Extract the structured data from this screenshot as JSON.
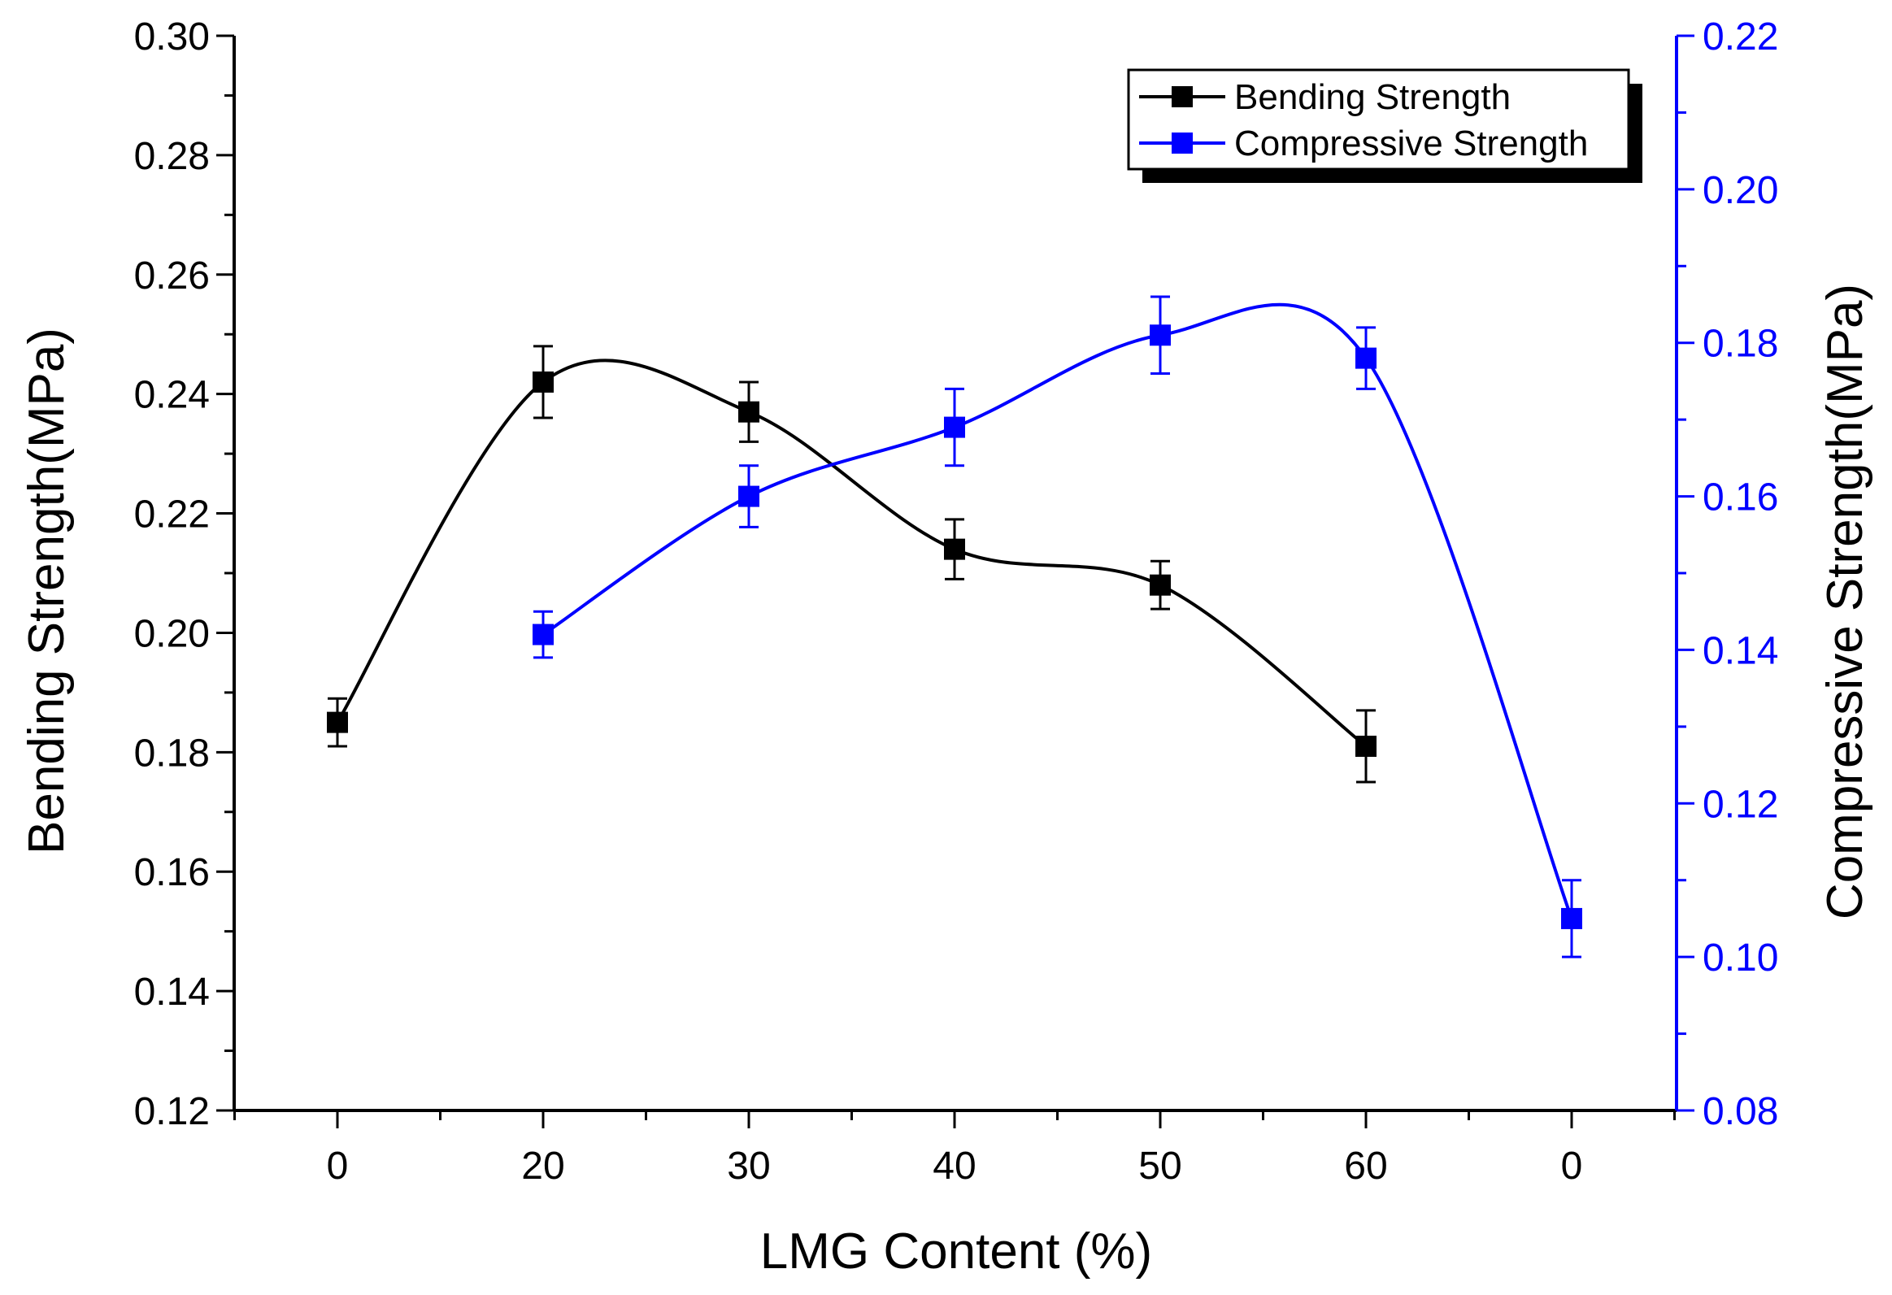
{
  "chart_data": {
    "type": "line",
    "xlabel": "LMG Content (%)",
    "x_tick_labels": [
      "0",
      "20",
      "30",
      "40",
      "50",
      "60",
      "0"
    ],
    "y_left": {
      "label": "Bending Strength(MPa)",
      "range": [
        0.12,
        0.3
      ],
      "ticks": [
        "0.12",
        "0.14",
        "0.16",
        "0.18",
        "0.20",
        "0.22",
        "0.24",
        "0.26",
        "0.28",
        "0.30"
      ],
      "color": "#000000"
    },
    "y_right": {
      "label": "Compressive Strength(MPa)",
      "range": [
        0.08,
        0.22
      ],
      "ticks": [
        "0.08",
        "0.10",
        "0.12",
        "0.14",
        "0.16",
        "0.18",
        "0.20",
        "0.22"
      ],
      "color": "#0000ff"
    },
    "series": [
      {
        "name": "Bending Strength",
        "axis": "left",
        "color": "#000000",
        "marker": "square",
        "points": [
          {
            "category_index": 0,
            "value": 0.185,
            "error": 0.004
          },
          {
            "category_index": 1,
            "value": 0.242,
            "error": 0.006
          },
          {
            "category_index": 2,
            "value": 0.237,
            "error": 0.005
          },
          {
            "category_index": 3,
            "value": 0.214,
            "error": 0.005
          },
          {
            "category_index": 4,
            "value": 0.208,
            "error": 0.004
          },
          {
            "category_index": 5,
            "value": 0.181,
            "error": 0.006
          }
        ]
      },
      {
        "name": "Compressive Strength",
        "axis": "right",
        "color": "#0000ff",
        "marker": "square",
        "points": [
          {
            "category_index": 1,
            "value": 0.142,
            "error": 0.003
          },
          {
            "category_index": 2,
            "value": 0.16,
            "error": 0.004
          },
          {
            "category_index": 3,
            "value": 0.169,
            "error": 0.005
          },
          {
            "category_index": 4,
            "value": 0.181,
            "error": 0.005
          },
          {
            "category_index": 5,
            "value": 0.178,
            "error": 0.004
          },
          {
            "category_index": 6,
            "value": 0.105,
            "error": 0.005
          }
        ]
      }
    ],
    "legend_position": "top-right",
    "grid": false
  }
}
